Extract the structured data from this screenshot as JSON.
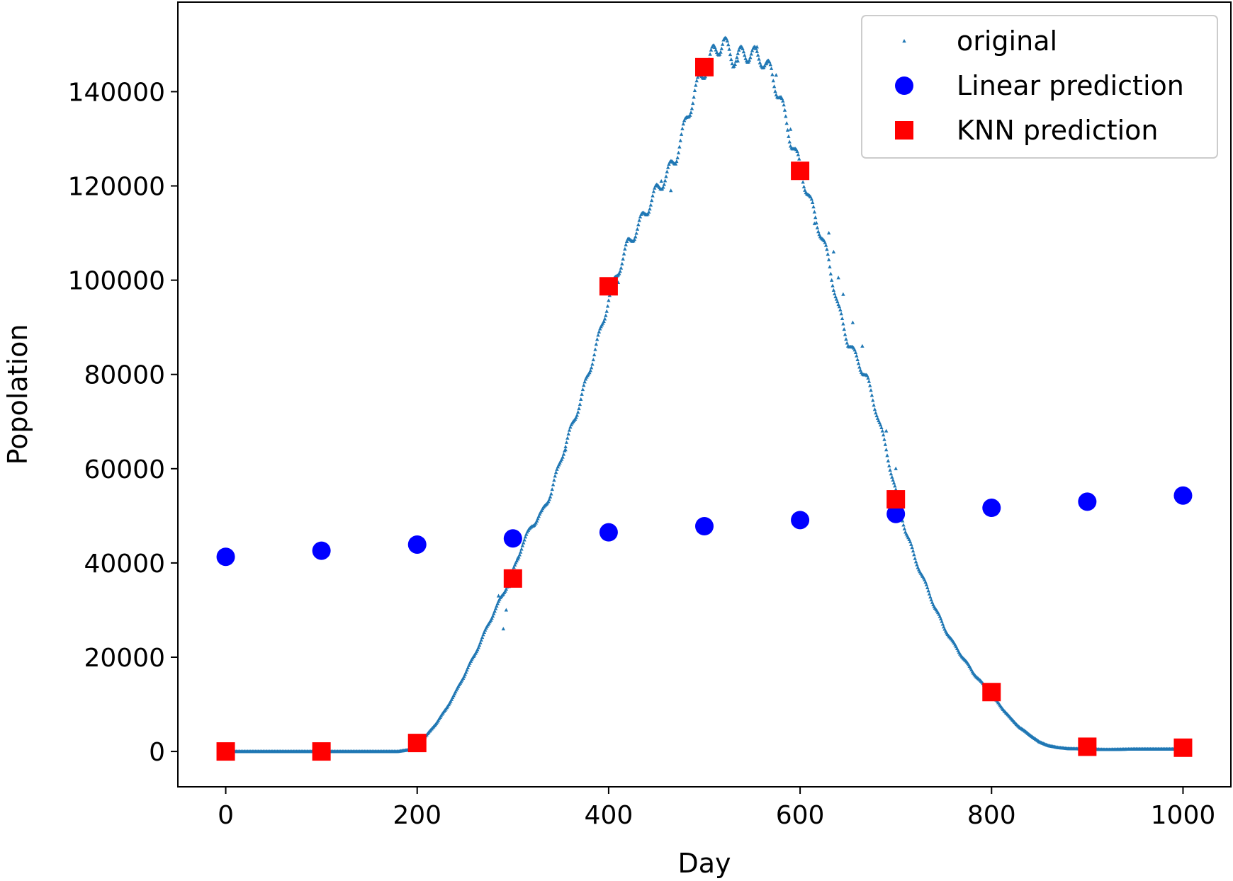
{
  "chart_data": {
    "type": "scatter",
    "title": "",
    "xlabel": "Day",
    "ylabel": "Popolation",
    "xlim": [
      -50,
      1050
    ],
    "ylim": [
      -7500,
      159000
    ],
    "xticks": [
      0,
      200,
      400,
      600,
      800,
      1000
    ],
    "yticks": [
      0,
      20000,
      40000,
      60000,
      80000,
      100000,
      120000,
      140000
    ],
    "legend_position": "top-right",
    "grid": false,
    "series": [
      {
        "name": "original",
        "marker": "small-triangle",
        "color": "#1f77b4",
        "curve_keypoints": [
          [
            0,
            0
          ],
          [
            50,
            0
          ],
          [
            100,
            0
          ],
          [
            150,
            0
          ],
          [
            180,
            0
          ],
          [
            190,
            300
          ],
          [
            200,
            1200
          ],
          [
            210,
            3500
          ],
          [
            220,
            6000
          ],
          [
            230,
            9000
          ],
          [
            240,
            12500
          ],
          [
            250,
            16500
          ],
          [
            260,
            20500
          ],
          [
            270,
            25000
          ],
          [
            280,
            29500
          ],
          [
            290,
            33500
          ],
          [
            300,
            38000
          ],
          [
            310,
            44000
          ],
          [
            320,
            48000
          ],
          [
            330,
            50500
          ],
          [
            340,
            55000
          ],
          [
            350,
            62000
          ],
          [
            360,
            68000
          ],
          [
            370,
            74000
          ],
          [
            380,
            81000
          ],
          [
            390,
            88000
          ],
          [
            400,
            96000
          ],
          [
            410,
            102000
          ],
          [
            420,
            107500
          ],
          [
            430,
            111000
          ],
          [
            440,
            115000
          ],
          [
            450,
            119000
          ],
          [
            460,
            122000
          ],
          [
            470,
            126000
          ],
          [
            480,
            133000
          ],
          [
            490,
            140000
          ],
          [
            500,
            144500
          ],
          [
            510,
            148500
          ],
          [
            520,
            150500
          ],
          [
            530,
            147000
          ],
          [
            540,
            148000
          ],
          [
            550,
            148000
          ],
          [
            560,
            147000
          ],
          [
            570,
            144000
          ],
          [
            580,
            138000
          ],
          [
            590,
            130000
          ],
          [
            600,
            124000
          ],
          [
            610,
            117000
          ],
          [
            620,
            111000
          ],
          [
            630,
            104000
          ],
          [
            640,
            94000
          ],
          [
            650,
            87000
          ],
          [
            660,
            83000
          ],
          [
            670,
            79000
          ],
          [
            680,
            72000
          ],
          [
            690,
            64000
          ],
          [
            700,
            55000
          ],
          [
            710,
            47000
          ],
          [
            720,
            41000
          ],
          [
            730,
            36000
          ],
          [
            740,
            31000
          ],
          [
            750,
            26500
          ],
          [
            760,
            23000
          ],
          [
            770,
            20000
          ],
          [
            780,
            17000
          ],
          [
            790,
            14500
          ],
          [
            800,
            12000
          ],
          [
            810,
            9500
          ],
          [
            820,
            7000
          ],
          [
            830,
            5000
          ],
          [
            840,
            3500
          ],
          [
            850,
            2000
          ],
          [
            860,
            1200
          ],
          [
            870,
            800
          ],
          [
            880,
            600
          ],
          [
            900,
            500
          ],
          [
            920,
            400
          ],
          [
            950,
            500
          ],
          [
            980,
            500
          ],
          [
            1000,
            500
          ]
        ],
        "noisy_points": [
          [
            285,
            33000
          ],
          [
            290,
            26000
          ],
          [
            293,
            30000
          ],
          [
            296,
            35000
          ],
          [
            305,
            41000
          ],
          [
            355,
            64000
          ],
          [
            410,
            99500
          ],
          [
            455,
            121000
          ],
          [
            465,
            119000
          ],
          [
            500,
            145000
          ],
          [
            535,
            146500
          ],
          [
            555,
            149500
          ],
          [
            565,
            146000
          ],
          [
            575,
            143500
          ],
          [
            590,
            132000
          ],
          [
            615,
            112000
          ],
          [
            630,
            110000
          ],
          [
            635,
            106000
          ],
          [
            640,
            100500
          ],
          [
            645,
            97000
          ],
          [
            655,
            91000
          ],
          [
            665,
            86000
          ],
          [
            690,
            68000
          ],
          [
            700,
            60000
          ]
        ]
      },
      {
        "name": "Linear prediction",
        "marker": "circle",
        "color": "#0000ff",
        "x": [
          0,
          100,
          200,
          300,
          400,
          500,
          600,
          700,
          800,
          900,
          1000
        ],
        "y": [
          41300,
          42600,
          43900,
          45200,
          46500,
          47800,
          49100,
          50400,
          51700,
          53000,
          54300
        ]
      },
      {
        "name": "KNN prediction",
        "marker": "square",
        "color": "#ff0000",
        "x": [
          0,
          100,
          200,
          300,
          400,
          500,
          600,
          700,
          800,
          900,
          1000
        ],
        "y": [
          0,
          0,
          1800,
          36700,
          98700,
          145200,
          123200,
          53500,
          12600,
          1000,
          800
        ]
      }
    ]
  }
}
